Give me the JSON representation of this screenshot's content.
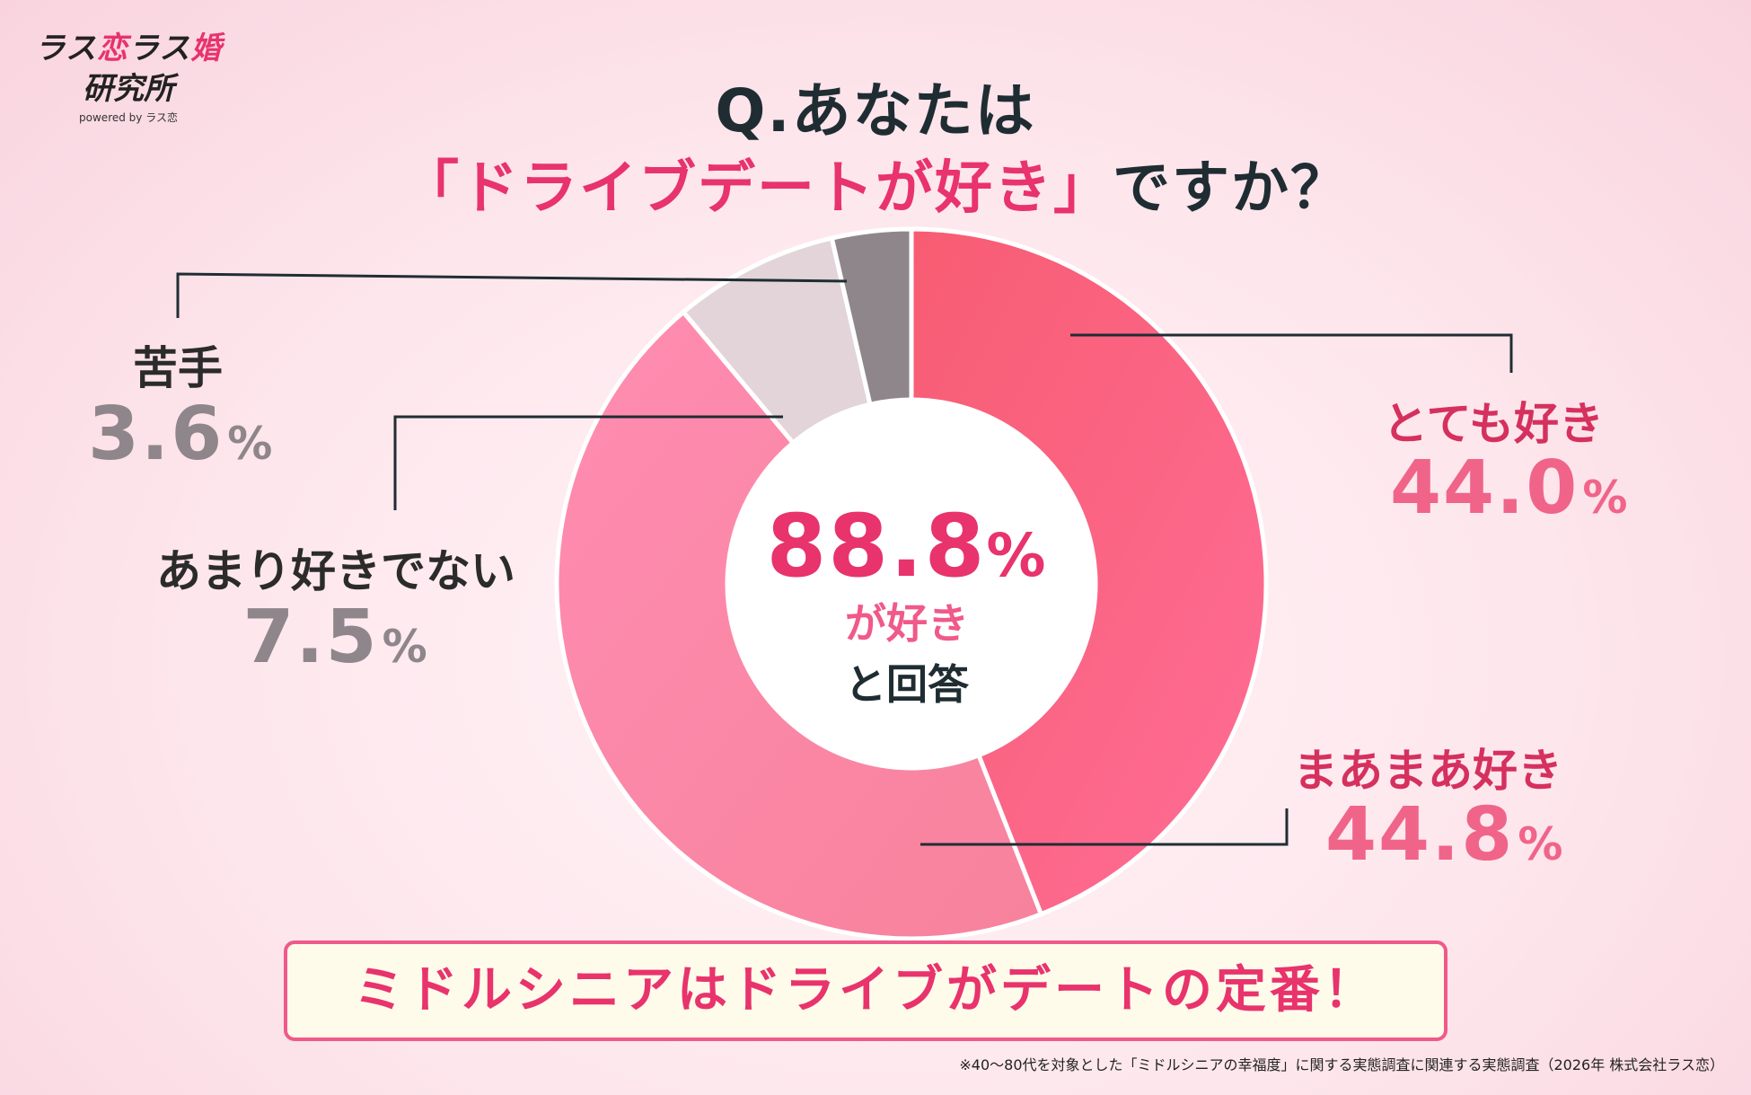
{
  "logo": {
    "line1_a": "ラス",
    "line1_b": "恋",
    "line1_c": "ラス",
    "line1_d": "婚",
    "line2": "研究所",
    "line3": "powered by ラス恋"
  },
  "title": {
    "line1": "Q.あなたは",
    "line2_highlight": "「ドライブデートが好き」",
    "line2_rest": "ですか？"
  },
  "chart_data": {
    "type": "pie",
    "donut": true,
    "categories": [
      "とても好き",
      "まあまあ好き",
      "あまり好きでない",
      "苦手"
    ],
    "values": [
      44.0,
      44.8,
      7.5,
      3.6
    ],
    "unit": "%",
    "colors": [
      "#f35b7e",
      "#f987a8",
      "#e2d4d8",
      "#8f868b"
    ],
    "center_value": "88.8",
    "center_line1": "が好き",
    "center_line2": "と回答"
  },
  "labels": {
    "very": {
      "name": "とても好き",
      "value": "44.0",
      "pct": "%"
    },
    "somewhat": {
      "name": "まあまあ好き",
      "value": "44.8",
      "pct": "%"
    },
    "notreally": {
      "name": "あまり好きでない",
      "value": "7.5",
      "pct": "%"
    },
    "dislike": {
      "name": "苦手",
      "value": "3.6",
      "pct": "%"
    }
  },
  "center": {
    "value": "88.8",
    "pct": "%",
    "line1": "が好き",
    "line2": "と回答"
  },
  "banner": "ミドルシニアはドライブがデートの定番！",
  "footnote": "※40〜80代を対象とした「ミドルシニアの幸福度」に関する実態調査に関連する実態調査（2026年 株式会社ラス恋）"
}
